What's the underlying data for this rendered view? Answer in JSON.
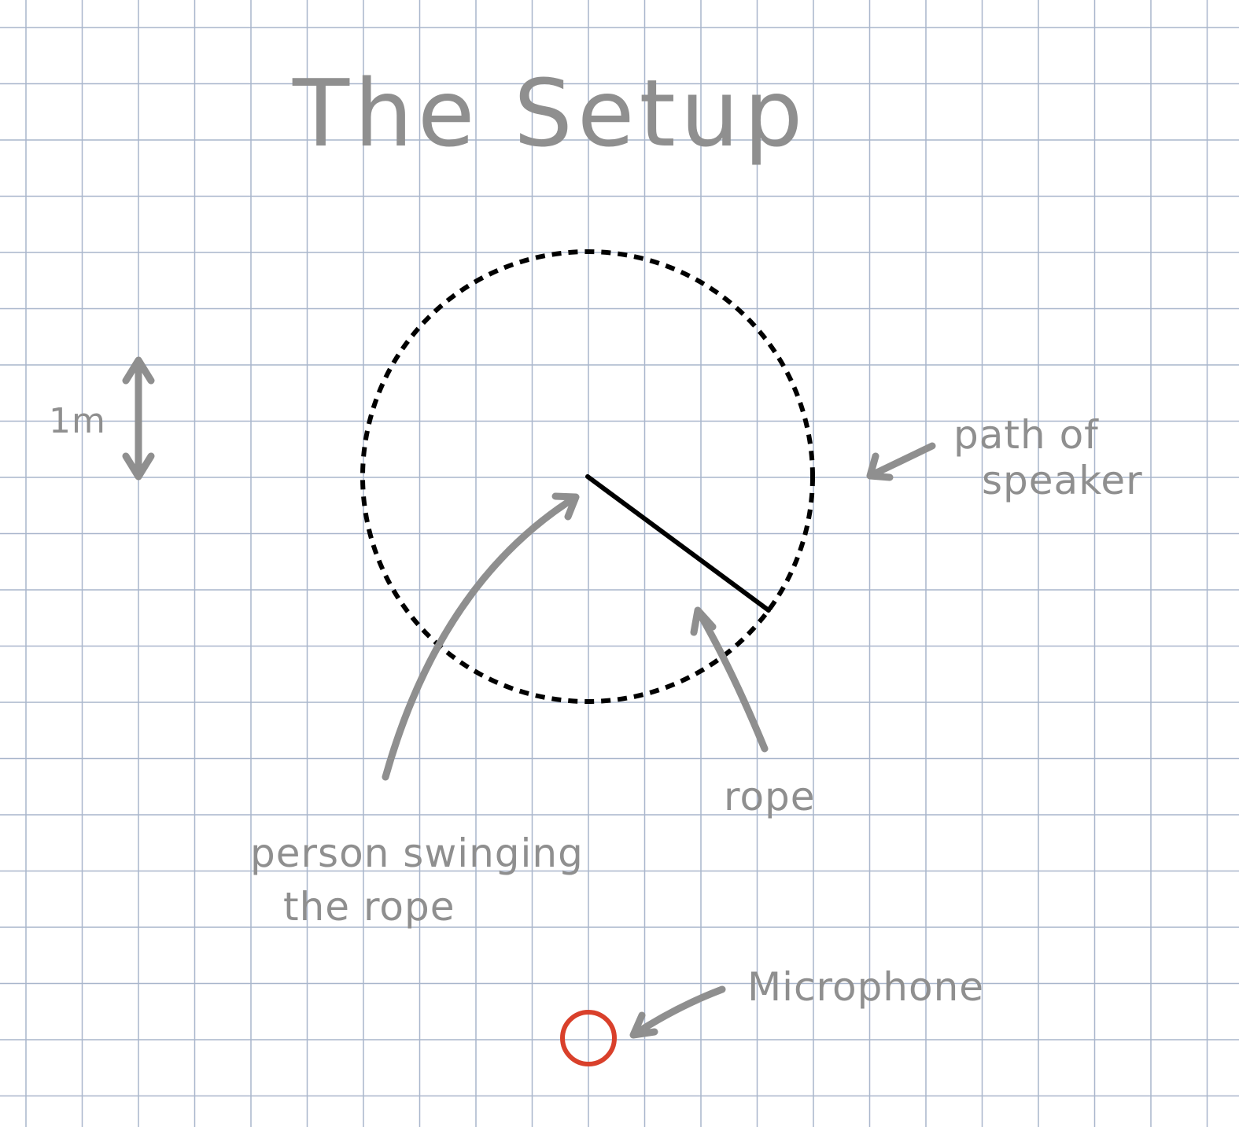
{
  "title": "The Setup",
  "scale_label": "1m",
  "labels": {
    "path_line1": "path of",
    "path_line2": "speaker",
    "rope": "rope",
    "person_line1": "person swinging",
    "person_line2": "the rope",
    "microphone": "Microphone"
  },
  "colors": {
    "paper": "#ffffff",
    "grid": "#a9b6cc",
    "annotation": "#8f8f8f",
    "ink": "#000000",
    "microphone": "#d9402b"
  },
  "icons": {
    "microphone": "circle-outline",
    "scale": "double-headed-arrow"
  }
}
